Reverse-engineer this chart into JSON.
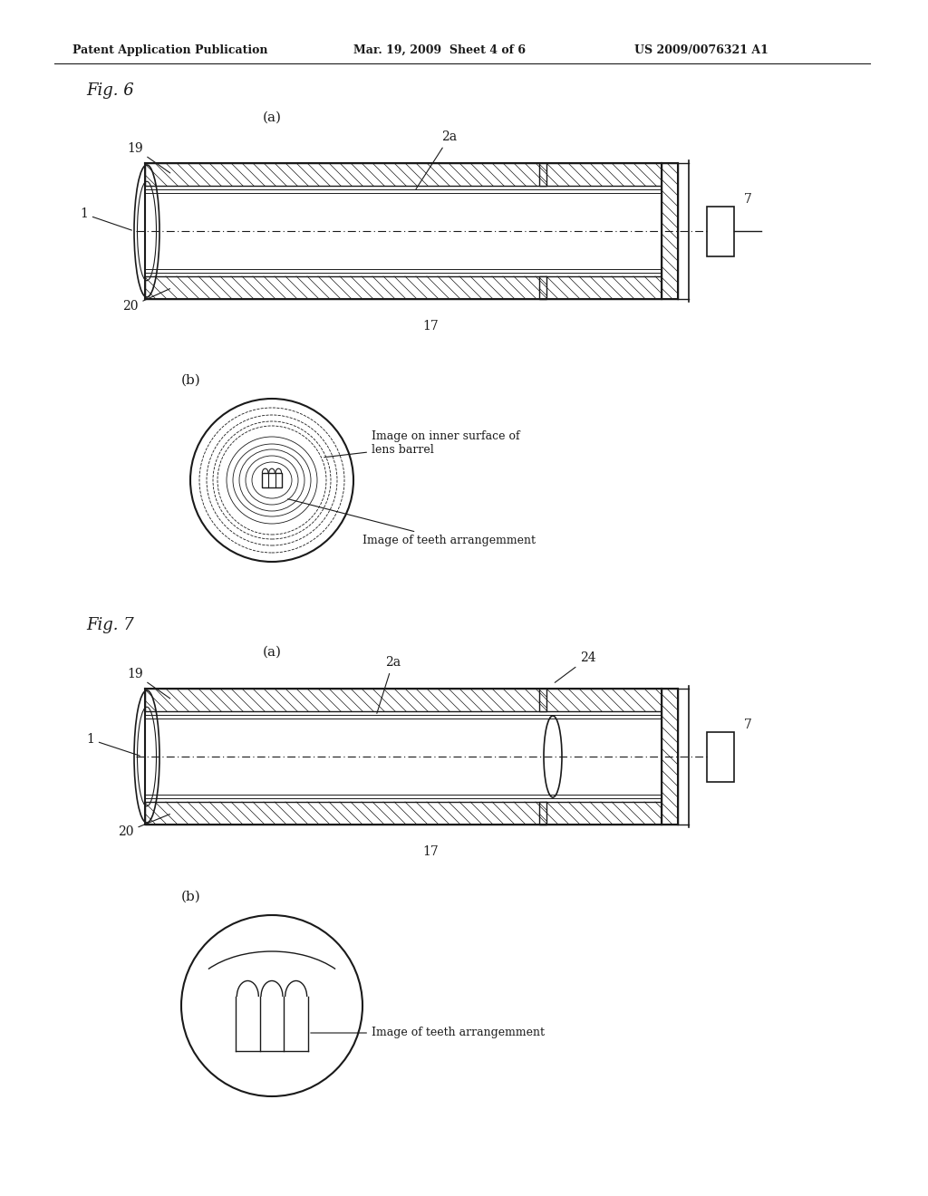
{
  "bg_color": "#ffffff",
  "header_left": "Patent Application Publication",
  "header_mid": "Mar. 19, 2009  Sheet 4 of 6",
  "header_right": "US 2009/0076321 A1",
  "fig6_label": "Fig. 6",
  "fig7_label": "Fig. 7",
  "fig6a_label": "(a)",
  "fig6b_label": "(b)",
  "fig7a_label": "(a)",
  "fig7b_label": "(b)",
  "line_color": "#1a1a1a",
  "hatch_color": "#1a1a1a",
  "text_color": "#1a1a1a"
}
